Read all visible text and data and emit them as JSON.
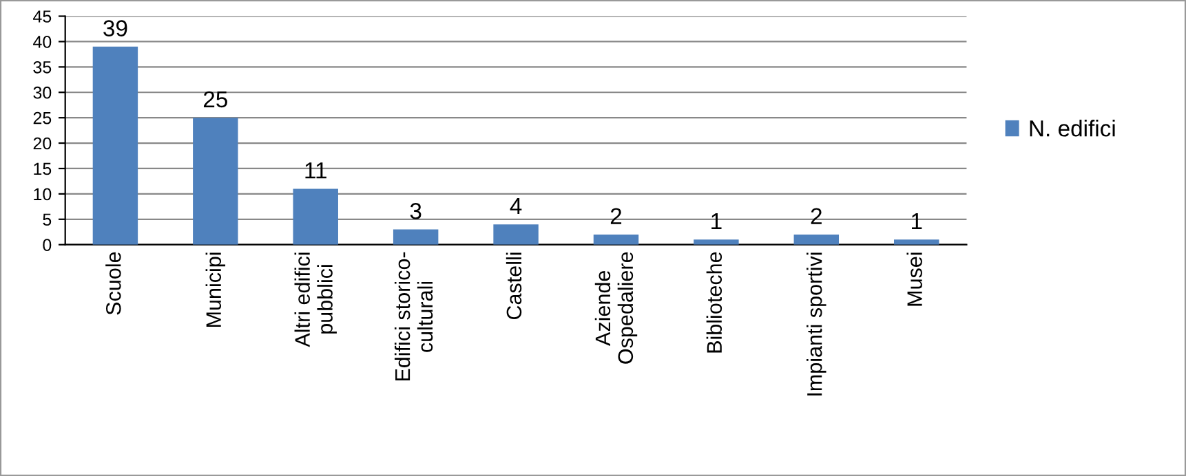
{
  "chart_data": {
    "type": "bar",
    "categories": [
      "Scuole",
      "Municipi",
      "Altri edifici\npubblici",
      "Edifici storico-\nculturali",
      "Castelli",
      "Aziende\nOspedaliere",
      "Biblioteche",
      "Impianti sportivi",
      "Musei"
    ],
    "series": [
      {
        "name": "N. edifici",
        "color": "#4f81bd",
        "values": [
          39,
          25,
          11,
          3,
          4,
          2,
          1,
          2,
          1
        ]
      }
    ],
    "ylim": [
      0,
      45
    ],
    "yticks": [
      0,
      5,
      10,
      15,
      20,
      25,
      30,
      35,
      40,
      45
    ],
    "grid": "y",
    "legend": "right",
    "data_labels": true
  }
}
